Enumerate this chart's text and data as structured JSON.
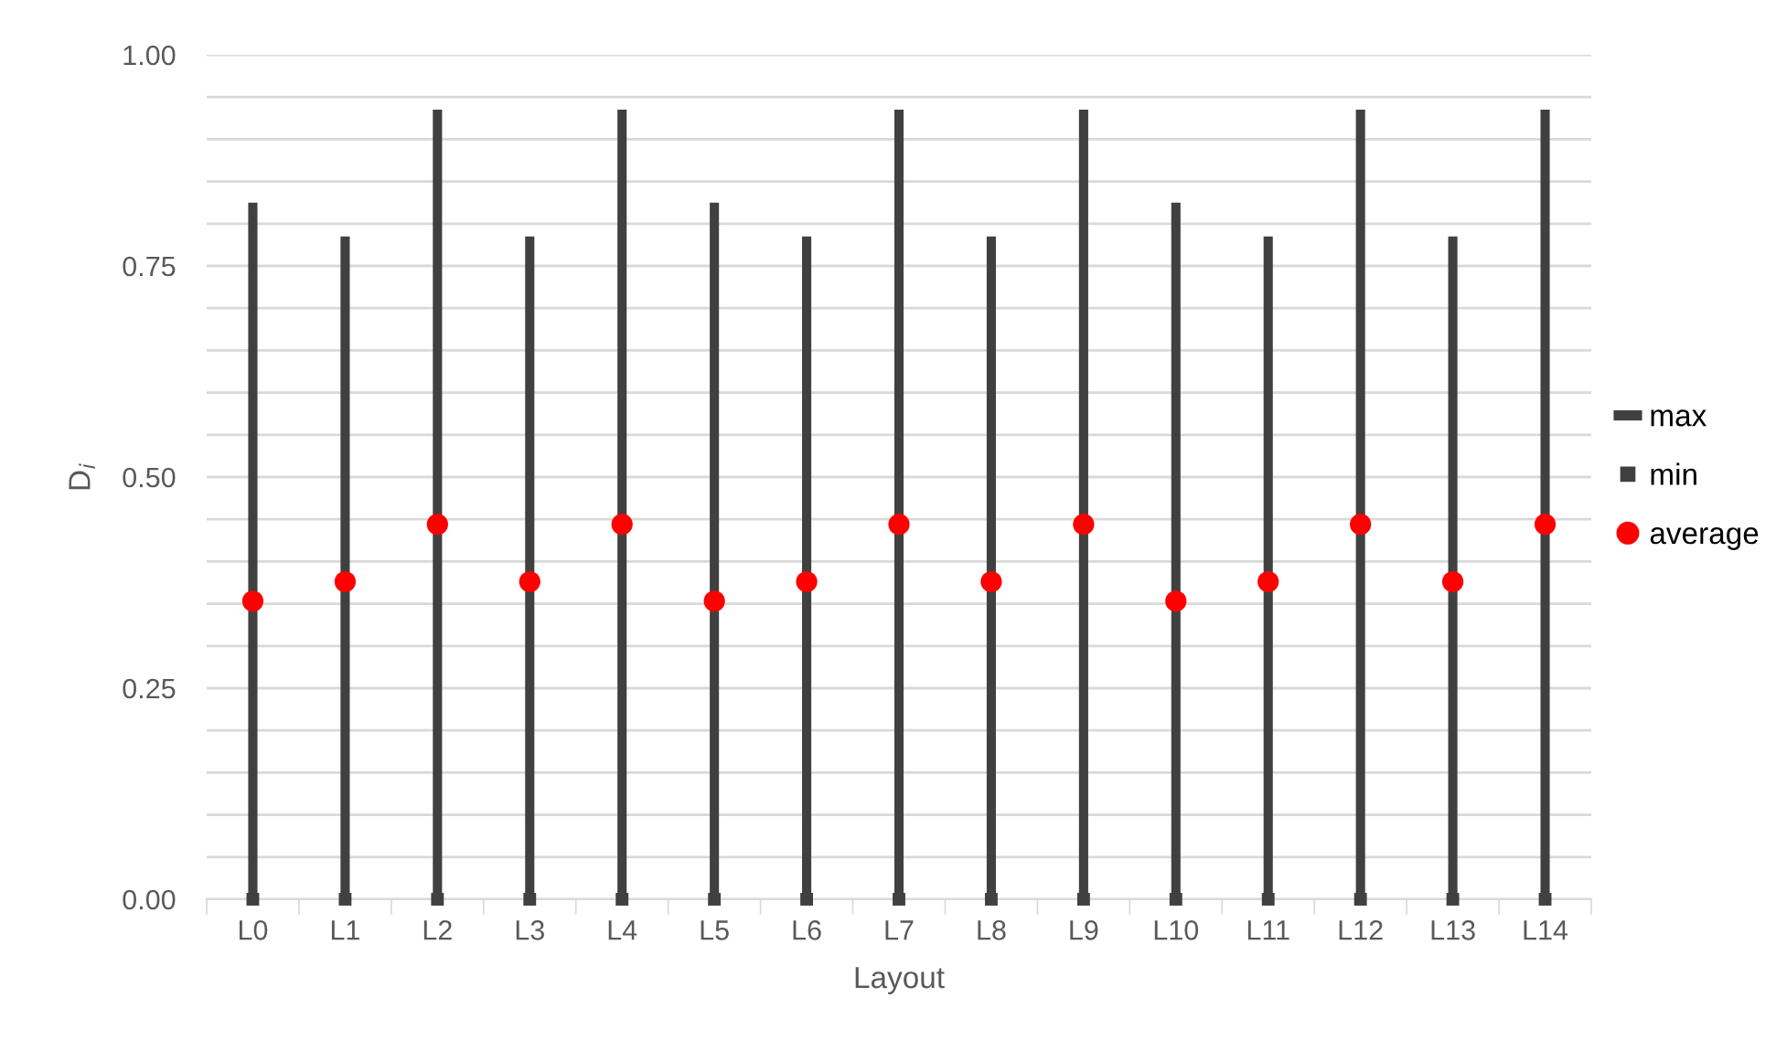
{
  "chart_data": {
    "type": "bar",
    "xlabel": "Layout",
    "ylabel": "D$_{i}$",
    "categories": [
      "L0",
      "L1",
      "L2",
      "L3",
      "L4",
      "L5",
      "L6",
      "L7",
      "L8",
      "L9",
      "L10",
      "L11",
      "L12",
      "L13",
      "L14"
    ],
    "series": [
      {
        "name": "max",
        "color": "#404040",
        "values": [
          0.825,
          0.785,
          0.935,
          0.785,
          0.935,
          0.825,
          0.785,
          0.935,
          0.785,
          0.935,
          0.825,
          0.785,
          0.935,
          0.785,
          0.935
        ]
      },
      {
        "name": "min",
        "type": "scatter",
        "color": "#404040",
        "marker": "square",
        "values": [
          0,
          0,
          0,
          0,
          0,
          0,
          0,
          0,
          0,
          0,
          0,
          0,
          0,
          0,
          0
        ]
      },
      {
        "name": "average",
        "type": "scatter",
        "color": "#ff0000",
        "marker": "circle",
        "values": [
          0.353,
          0.376,
          0.444,
          0.376,
          0.444,
          0.353,
          0.376,
          0.444,
          0.376,
          0.444,
          0.353,
          0.376,
          0.444,
          0.376,
          0.444
        ]
      }
    ],
    "ylim": [
      0,
      1
    ],
    "yticks": [
      {
        "value": 0,
        "label": "0.00"
      },
      {
        "value": 0.05,
        "label": null
      },
      {
        "value": 0.1,
        "label": null
      },
      {
        "value": 0.15,
        "label": null
      },
      {
        "value": 0.2,
        "label": null
      },
      {
        "value": 0.25,
        "label": "0.25"
      },
      {
        "value": 0.3,
        "label": null
      },
      {
        "value": 0.35,
        "label": null
      },
      {
        "value": 0.4,
        "label": null
      },
      {
        "value": 0.45,
        "label": null
      },
      {
        "value": 0.5,
        "label": "0.50"
      },
      {
        "value": 0.55,
        "label": null
      },
      {
        "value": 0.6,
        "label": null
      },
      {
        "value": 0.65,
        "label": null
      },
      {
        "value": 0.7,
        "label": null
      },
      {
        "value": 0.75,
        "label": "0.75"
      },
      {
        "value": 0.8,
        "label": null
      },
      {
        "value": 0.85,
        "label": null
      },
      {
        "value": 0.9,
        "label": null
      },
      {
        "value": 0.95,
        "label": null
      },
      {
        "value": 1,
        "label": "1.00"
      }
    ],
    "grid": "y",
    "legend": "right"
  }
}
